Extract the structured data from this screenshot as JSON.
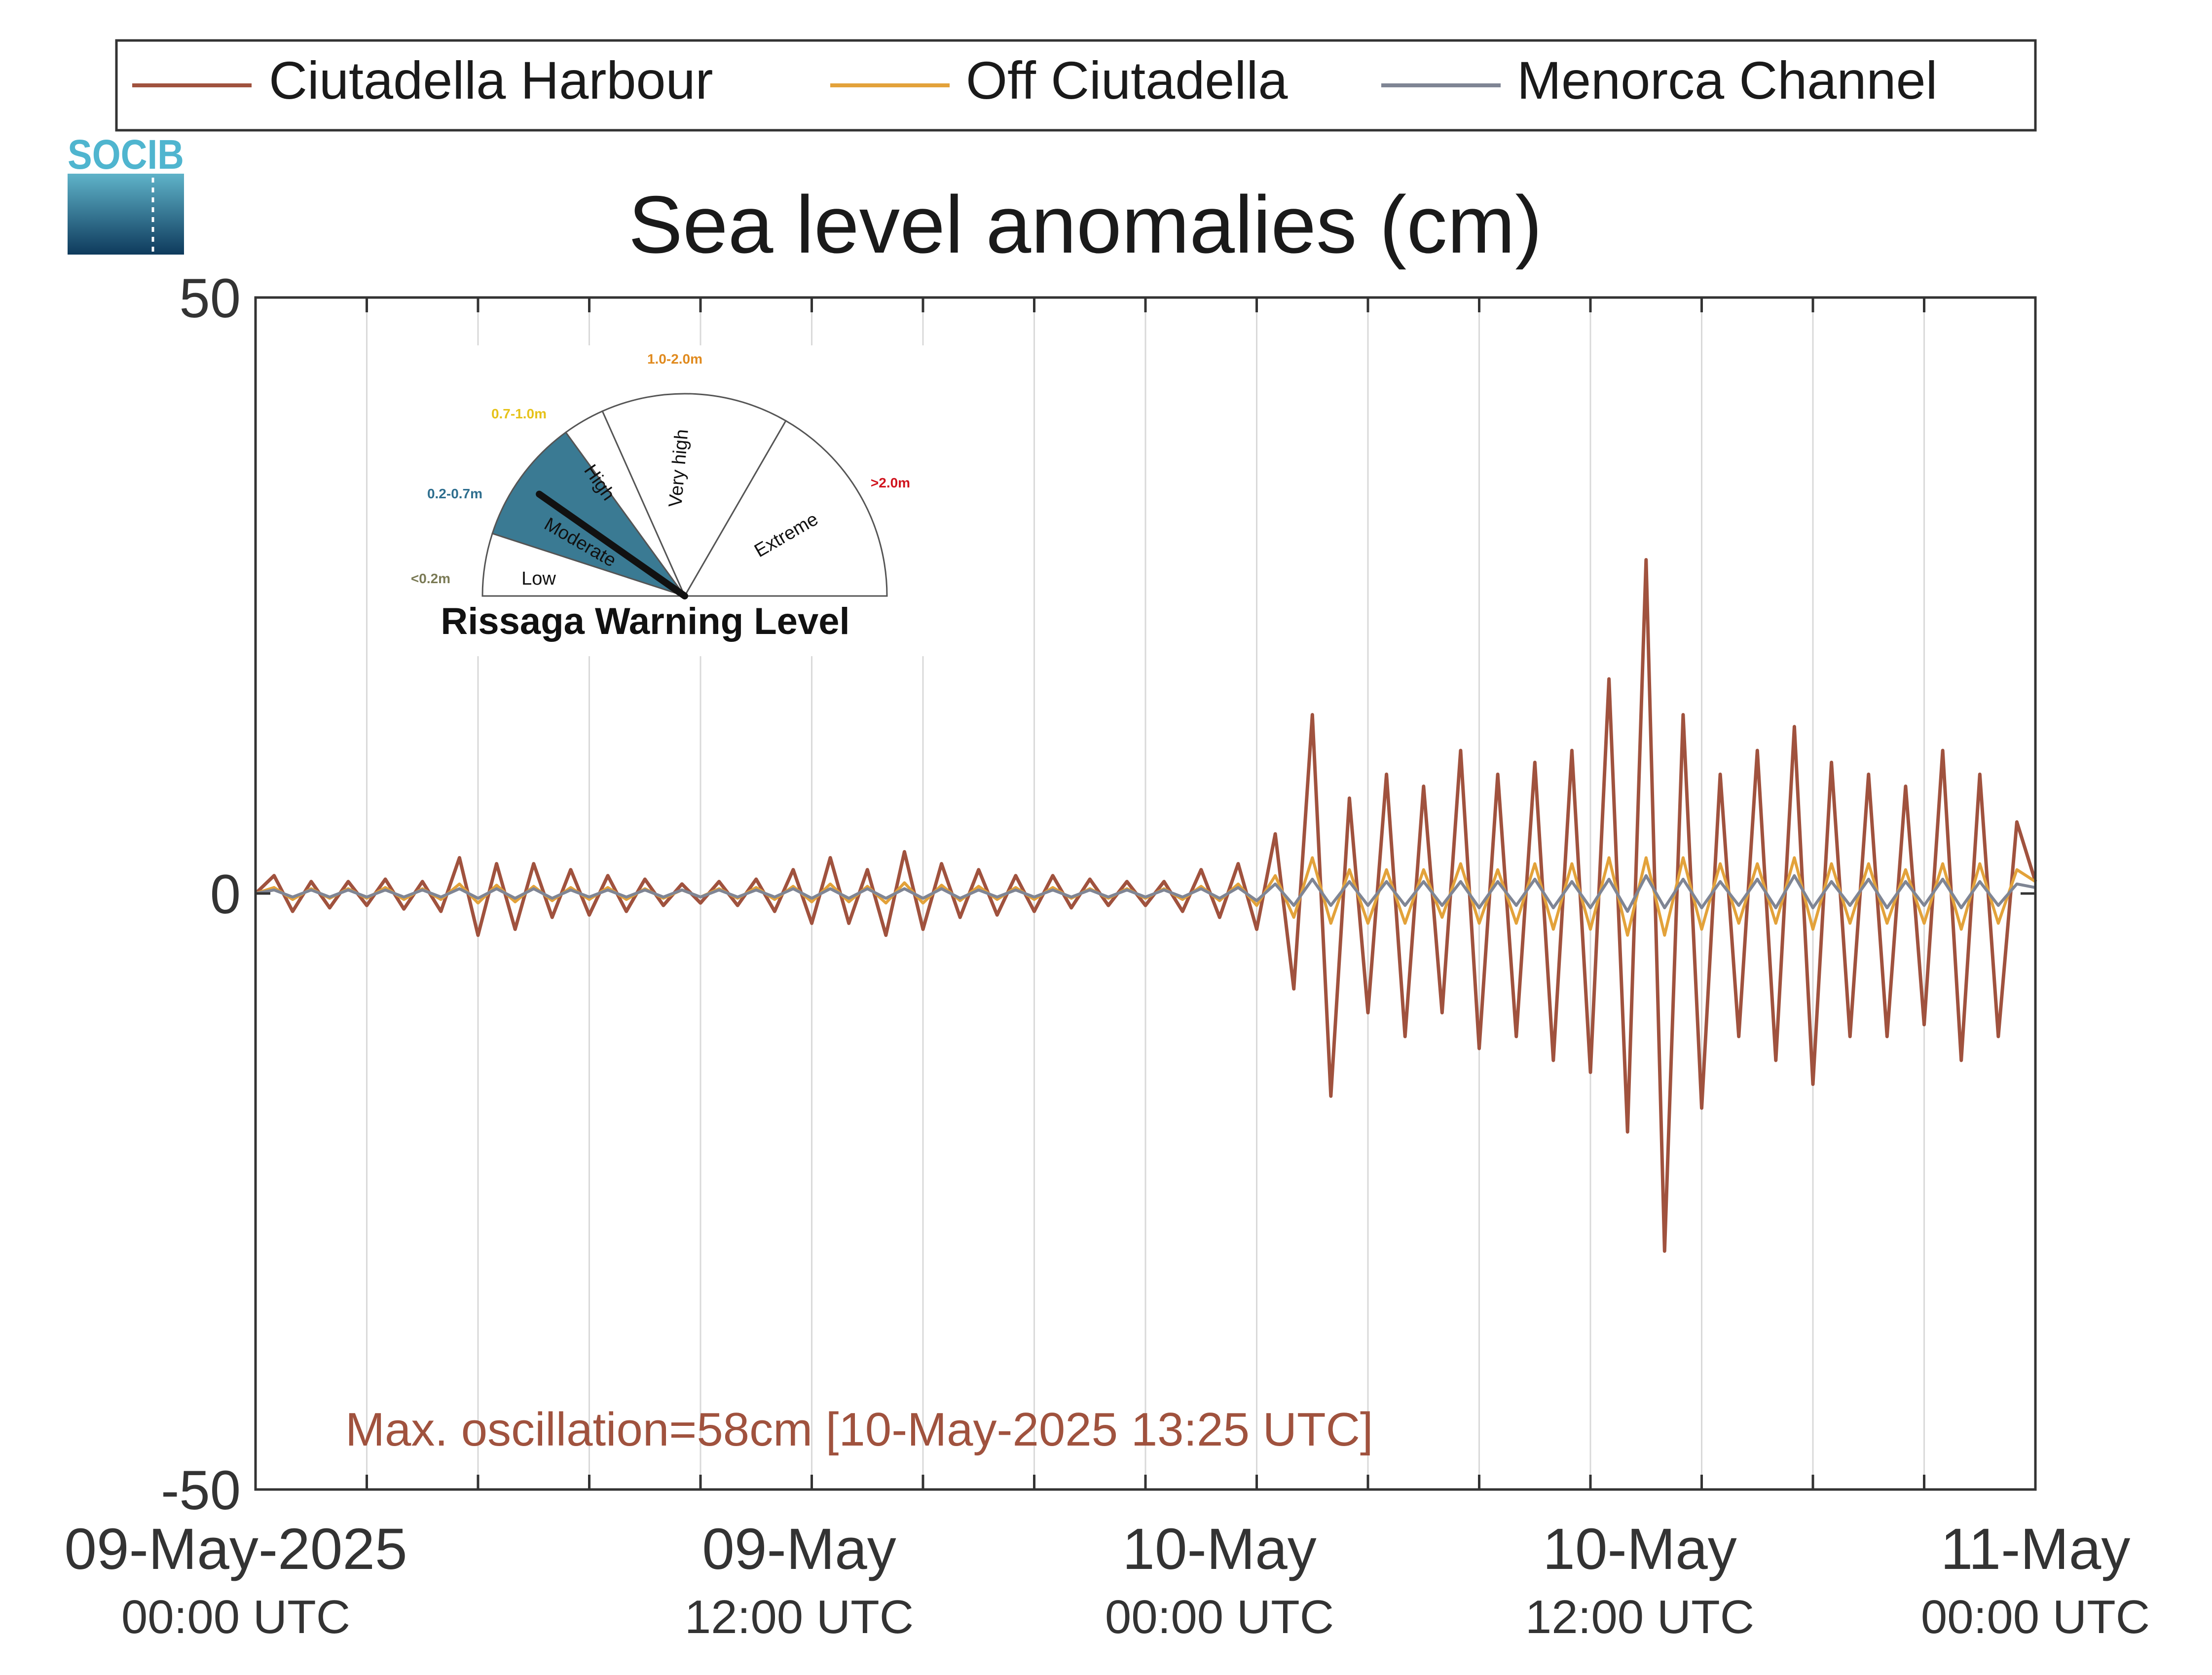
{
  "legend": {
    "items": [
      {
        "label": "Ciutadella Harbour",
        "color": "#A0523E"
      },
      {
        "label": "Off Ciutadella",
        "color": "#E3A23A"
      },
      {
        "label": "Menorca Channel",
        "color": "#7F8594"
      }
    ]
  },
  "logo": {
    "text": "SOCIB"
  },
  "gauge": {
    "title": "Rissaga Warning Level",
    "active_level": "Moderate",
    "levels": [
      {
        "name": "Low",
        "range": "<0.2m",
        "color": "#7A7A55",
        "fill": "#ffffff"
      },
      {
        "name": "Moderate",
        "range": "0.2-0.7m",
        "color": "#2E6E8E",
        "fill": "#3A7A93"
      },
      {
        "name": "High",
        "range": "0.7-1.0m",
        "color": "#E6C21A",
        "fill": "#ffffff"
      },
      {
        "name": "Very high",
        "range": "1.0-2.0m",
        "color": "#E08A1E",
        "fill": "#ffffff"
      },
      {
        "name": "Extreme",
        "range": ">2.0m",
        "color": "#D0141E",
        "fill": "#ffffff"
      }
    ]
  },
  "annotation": {
    "text": "Max. oscillation=58cm [10-May-2025 13:25 UTC]",
    "color": "#A0523E"
  },
  "chart_data": {
    "type": "line",
    "title": "Sea level anomalies (cm)",
    "xlabel": "",
    "ylabel": "",
    "ylim": [
      -50,
      50
    ],
    "yticks": [
      50,
      0,
      -50
    ],
    "xlim_hours": [
      0,
      48
    ],
    "x_tick_labels": [
      {
        "date": "09-May-2025",
        "time": "00:00 UTC"
      },
      {
        "date": "09-May",
        "time": "12:00 UTC"
      },
      {
        "date": "10-May",
        "time": "00:00 UTC"
      },
      {
        "date": "10-May",
        "time": "12:00 UTC"
      },
      {
        "date": "11-May",
        "time": "00:00 UTC"
      }
    ],
    "grid": true,
    "legend_position": "top",
    "x_hours": [
      0,
      0.5,
      1,
      1.5,
      2,
      2.5,
      3,
      3.5,
      4,
      4.5,
      5,
      5.5,
      6,
      6.5,
      7,
      7.5,
      8,
      8.5,
      9,
      9.5,
      10,
      10.5,
      11,
      11.5,
      12,
      12.5,
      13,
      13.5,
      14,
      14.5,
      15,
      15.5,
      16,
      16.5,
      17,
      17.5,
      18,
      18.5,
      19,
      19.5,
      20,
      20.5,
      21,
      21.5,
      22,
      22.5,
      23,
      23.5,
      24,
      24.5,
      25,
      25.5,
      26,
      26.5,
      27,
      27.5,
      28,
      28.5,
      29,
      29.5,
      30,
      30.5,
      31,
      31.5,
      32,
      32.5,
      33,
      33.5,
      34,
      34.5,
      35,
      35.5,
      36,
      36.5,
      37,
      37.5,
      38,
      38.5,
      39,
      39.5,
      40,
      40.5,
      41,
      41.5,
      42,
      42.5,
      43,
      43.5,
      44,
      44.5,
      45,
      45.5,
      46,
      46.5,
      47,
      47.5,
      48
    ],
    "series": [
      {
        "name": "Ciutadella Harbour",
        "color": "#A0523E",
        "values": [
          0,
          1.5,
          -1.5,
          1,
          -1.2,
          1,
          -1,
          1.2,
          -1.3,
          1,
          -1.5,
          3,
          -3.5,
          2.5,
          -3,
          2.5,
          -2,
          2,
          -1.8,
          1.5,
          -1.5,
          1.2,
          -1,
          0.8,
          -0.8,
          1,
          -1,
          1.2,
          -1.5,
          2,
          -2.5,
          3,
          -2.5,
          2,
          -3.5,
          3.5,
          -3,
          2.5,
          -2,
          2,
          -1.8,
          1.5,
          -1.5,
          1.5,
          -1.2,
          1.2,
          -1,
          1,
          -1,
          1,
          -1.5,
          2,
          -2,
          2.5,
          -3,
          5,
          -8,
          15,
          -17,
          8,
          -10,
          10,
          -12,
          9,
          -10,
          12,
          -13,
          10,
          -12,
          11,
          -14,
          12,
          -15,
          18,
          -20,
          28,
          -30,
          15,
          -18,
          10,
          -12,
          12,
          -14,
          14,
          -16,
          11,
          -12,
          10,
          -12,
          9,
          -11,
          12,
          -14,
          10,
          -12,
          6,
          1
        ]
      },
      {
        "name": "Off Ciutadella",
        "color": "#E3A23A",
        "values": [
          0,
          0.5,
          -0.5,
          0.4,
          -0.4,
          0.4,
          -0.4,
          0.5,
          -0.5,
          0.4,
          -0.5,
          0.8,
          -0.8,
          0.7,
          -0.7,
          0.6,
          -0.6,
          0.5,
          -0.5,
          0.5,
          -0.5,
          0.4,
          -0.4,
          0.3,
          -0.3,
          0.4,
          -0.4,
          0.5,
          -0.5,
          0.6,
          -0.7,
          0.8,
          -0.7,
          0.6,
          -0.8,
          0.9,
          -0.8,
          0.7,
          -0.6,
          0.6,
          -0.5,
          0.5,
          -0.5,
          0.5,
          -0.4,
          0.4,
          -0.4,
          0.4,
          -0.4,
          0.4,
          -0.5,
          0.6,
          -0.6,
          0.8,
          -1,
          1.5,
          -2,
          3,
          -2.5,
          2,
          -2.5,
          2,
          -2.5,
          2,
          -2,
          2.5,
          -2.5,
          2,
          -2.5,
          2.5,
          -3,
          2.5,
          -3,
          3,
          -3.5,
          3,
          -3.5,
          3,
          -3,
          2.5,
          -2.5,
          2.5,
          -2.5,
          3,
          -3,
          2.5,
          -2.5,
          2.5,
          -2.5,
          2,
          -2.5,
          2.5,
          -3,
          2.5,
          -2.5,
          2,
          1
        ]
      },
      {
        "name": "Menorca Channel",
        "color": "#7F8594",
        "values": [
          0,
          0.3,
          -0.3,
          0.3,
          -0.3,
          0.3,
          -0.3,
          0.3,
          -0.3,
          0.3,
          -0.3,
          0.4,
          -0.4,
          0.4,
          -0.4,
          0.4,
          -0.4,
          0.3,
          -0.3,
          0.3,
          -0.3,
          0.3,
          -0.3,
          0.3,
          -0.3,
          0.3,
          -0.3,
          0.3,
          -0.3,
          0.4,
          -0.4,
          0.4,
          -0.4,
          0.4,
          -0.4,
          0.4,
          -0.4,
          0.4,
          -0.4,
          0.3,
          -0.3,
          0.3,
          -0.3,
          0.3,
          -0.3,
          0.3,
          -0.3,
          0.3,
          -0.3,
          0.3,
          -0.3,
          0.4,
          -0.4,
          0.5,
          -0.6,
          0.8,
          -1,
          1.2,
          -1,
          1,
          -1,
          1,
          -1,
          1,
          -1,
          1,
          -1.2,
          1,
          -1,
          1.2,
          -1.2,
          1,
          -1.2,
          1.2,
          -1.5,
          1.5,
          -1.2,
          1.2,
          -1.2,
          1,
          -1,
          1.2,
          -1.2,
          1.5,
          -1.2,
          1,
          -1,
          1.2,
          -1.2,
          1,
          -1,
          1.2,
          -1.2,
          1,
          -1,
          0.8,
          0.5
        ]
      }
    ]
  }
}
